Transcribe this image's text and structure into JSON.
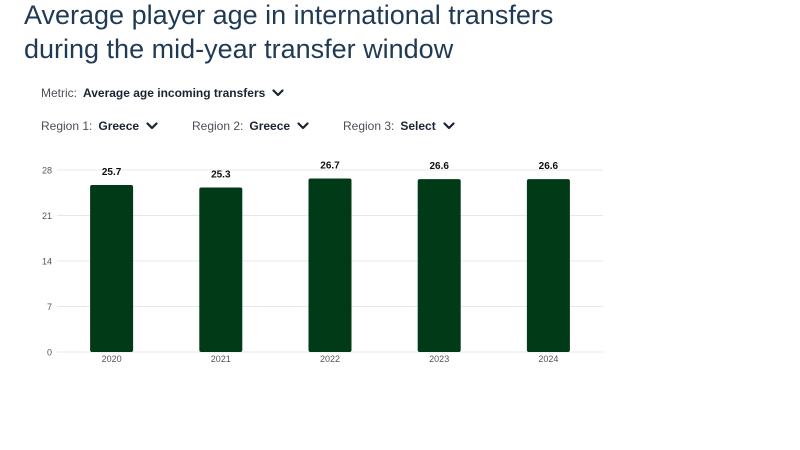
{
  "title": {
    "line1": "Average player age in international transfers",
    "line2": "during the mid-year transfer window"
  },
  "controls": {
    "metric": {
      "label": "Metric:",
      "value": "Average age incoming transfers",
      "icon": "chevron-down-icon"
    },
    "region1": {
      "label": "Region 1:",
      "value": "Greece",
      "icon": "chevron-down-icon"
    },
    "region2": {
      "label": "Region 2:",
      "value": "Greece",
      "icon": "chevron-down-icon"
    },
    "region3": {
      "label": "Region 3:",
      "value": "Select",
      "icon": "chevron-down-icon"
    }
  },
  "colors": {
    "bar": "#003a17",
    "grid": "#e8e8e8",
    "axis_text": "#555555",
    "label_text": "#111111"
  },
  "chart_data": {
    "type": "bar",
    "categories": [
      "2020",
      "2021",
      "2022",
      "2023",
      "2024"
    ],
    "values": [
      25.7,
      25.3,
      26.7,
      26.6,
      26.6
    ],
    "data_labels": [
      "25.7",
      "25.3",
      "26.7",
      "26.6",
      "26.6"
    ],
    "yticks": [
      0,
      7,
      14,
      21,
      28
    ],
    "ylim": [
      0,
      28
    ],
    "grid": true,
    "legend": "none"
  }
}
